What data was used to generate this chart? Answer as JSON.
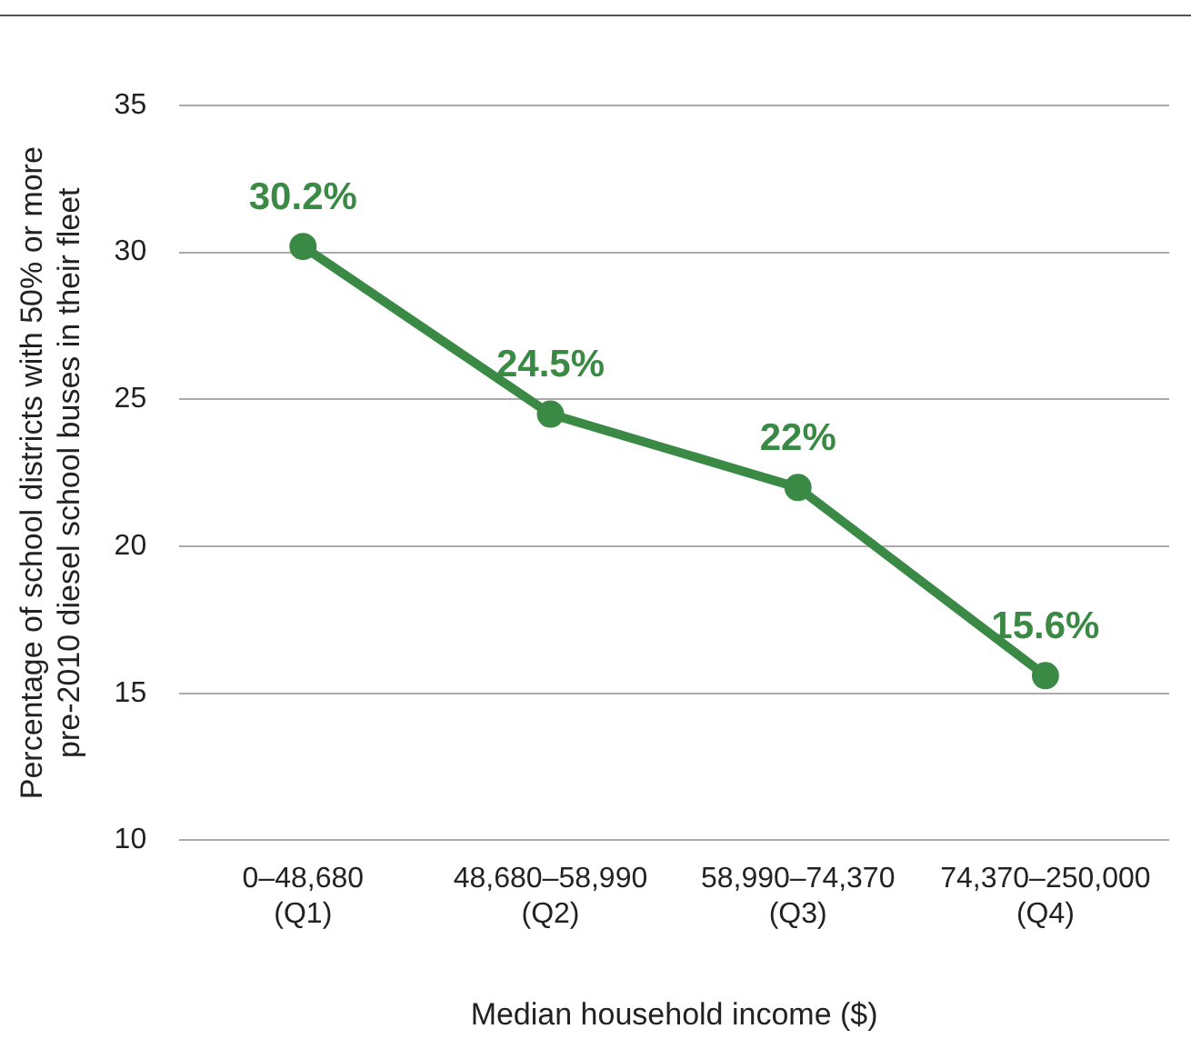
{
  "chart_data": {
    "type": "line",
    "xlabel": "Median household income ($)",
    "ylabel": "Percentage of school districts with 50% or more pre-2010 diesel school buses in their fleet",
    "categories": [
      "0–48,680 (Q1)",
      "48,680–58,990 (Q2)",
      "58,990–74,370 (Q3)",
      "74,370–250,000 (Q4)"
    ],
    "series": [
      {
        "color": "#3a8a45",
        "values": [
          30.2,
          24.5,
          22,
          15.6
        ],
        "value_labels": [
          "30.2%",
          "24.5%",
          "22%",
          "15.6%"
        ]
      }
    ],
    "ylim": [
      10,
      35
    ],
    "yticks": [
      10,
      15,
      20,
      25,
      30,
      35
    ],
    "grid": "y",
    "legend": false,
    "marker": "circle",
    "line_style": "solid"
  }
}
